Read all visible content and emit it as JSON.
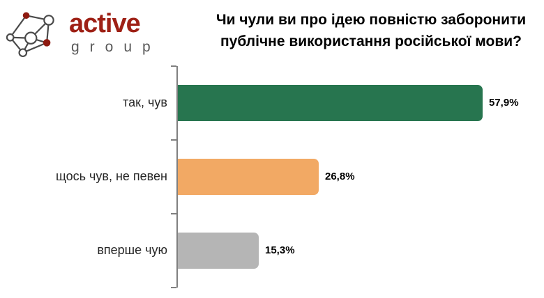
{
  "logo": {
    "brand": "active",
    "sub": "group",
    "brand_color": "#9e2015",
    "sub_color": "#595959",
    "node_red": "#8e1a10",
    "edge_color": "#4a4a4a"
  },
  "title": {
    "line1": "Чи чули ви про ідею повністю заборонити",
    "line2": "публічне використання російської мови?"
  },
  "chart_data": {
    "type": "bar",
    "orientation": "horizontal",
    "title": "Чи чули ви про ідею повністю заборонити публічне використання російської мови?",
    "categories": [
      "так, чув",
      "щось чув, не певен",
      "вперше чую"
    ],
    "values": [
      57.9,
      26.8,
      15.3
    ],
    "value_labels": [
      "57,9%",
      "26,8%",
      "15,3%"
    ],
    "bar_colors": [
      "#27754f",
      "#f2a964",
      "#b5b5b5"
    ],
    "xlabel": "",
    "ylabel": "",
    "xlim": [
      0,
      65
    ],
    "grid": false,
    "legend": false,
    "axis_color": "#808080"
  }
}
